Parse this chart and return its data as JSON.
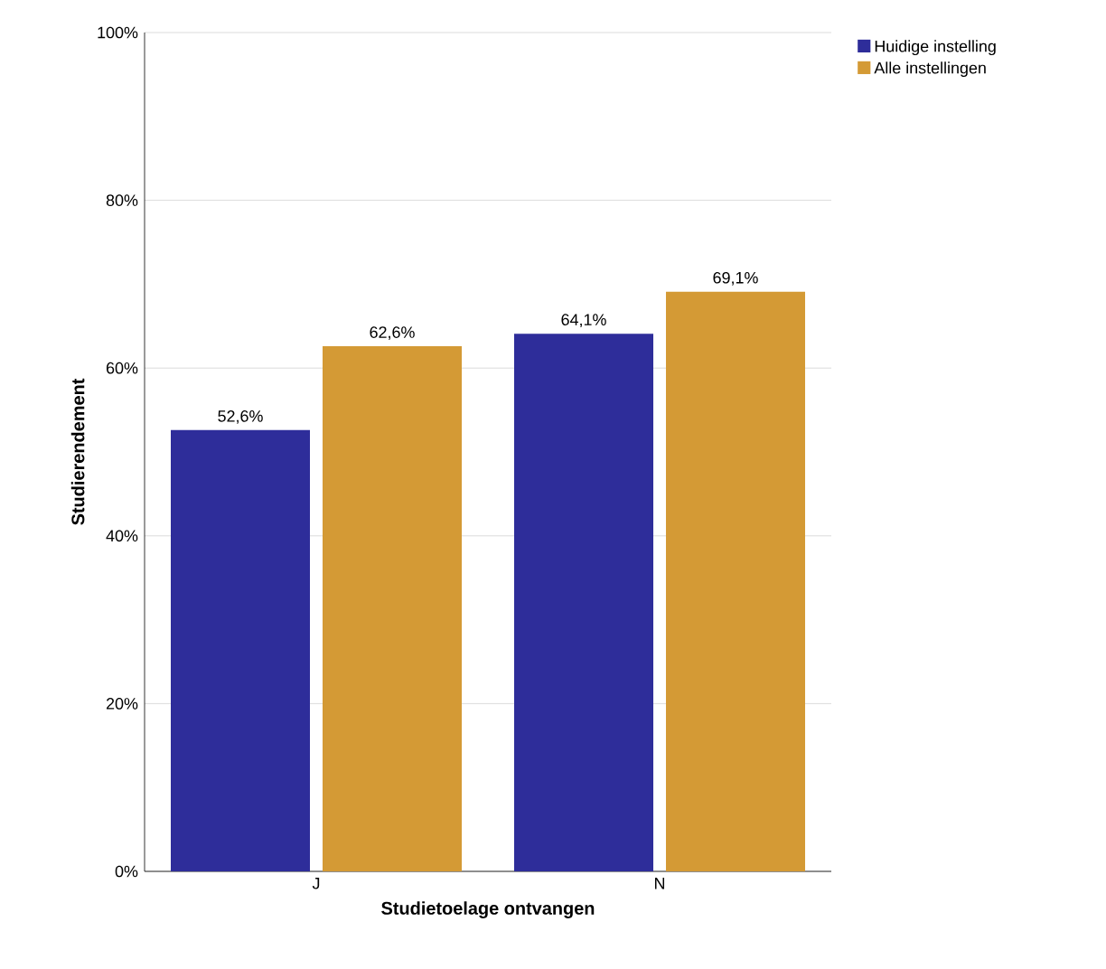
{
  "chart_data": {
    "type": "bar",
    "xlabel": "Studietoelage ontvangen",
    "ylabel": "Studierendement",
    "categories": [
      "J",
      "N"
    ],
    "series": [
      {
        "name": "Huidige instelling",
        "color": "#2e2d9a",
        "values": [
          52.6,
          64.1
        ],
        "value_labels": [
          "52,6%",
          "64,1%"
        ]
      },
      {
        "name": "Alle instellingen",
        "color": "#d49a35",
        "values": [
          62.6,
          69.1
        ],
        "value_labels": [
          "62,6%",
          "69,1%"
        ]
      }
    ],
    "ylim": [
      0,
      100
    ],
    "yticks": [
      {
        "value": 0,
        "label": "0%"
      },
      {
        "value": 20,
        "label": "20%"
      },
      {
        "value": 40,
        "label": "40%"
      },
      {
        "value": 60,
        "label": "60%"
      },
      {
        "value": 80,
        "label": "80%"
      },
      {
        "value": 100,
        "label": "100%"
      }
    ],
    "grid": "y",
    "legend": "top right"
  }
}
